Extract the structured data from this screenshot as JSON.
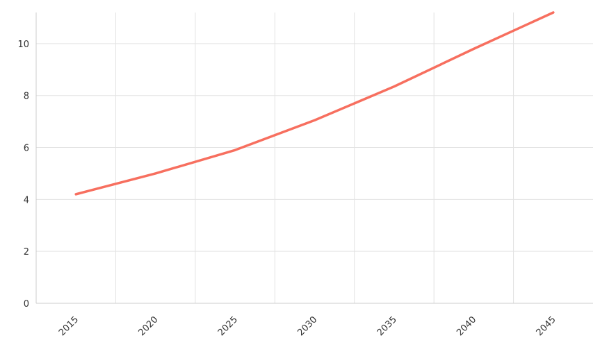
{
  "chart_data": {
    "type": "line",
    "title": "",
    "xlabel": "",
    "ylabel": "",
    "x": [
      2015,
      2020,
      2025,
      2030,
      2035,
      2040,
      2045
    ],
    "x_tick_labels": [
      "2015",
      "2020",
      "2025",
      "2030",
      "2035",
      "2040",
      "2045"
    ],
    "xlim": [
      2012.5,
      2047.5
    ],
    "y_ticks": [
      0,
      2,
      4,
      6,
      8,
      10
    ],
    "y_tick_labels": [
      "0",
      "2",
      "4",
      "6",
      "8",
      "10"
    ],
    "ylim": [
      0,
      11.2
    ],
    "grid": true,
    "x_tick_rotation": "45deg",
    "series": [
      {
        "values": [
          4.2,
          5.0,
          5.9,
          7.05,
          8.35,
          9.8,
          11.2
        ],
        "color": "#f76f5f"
      }
    ]
  }
}
